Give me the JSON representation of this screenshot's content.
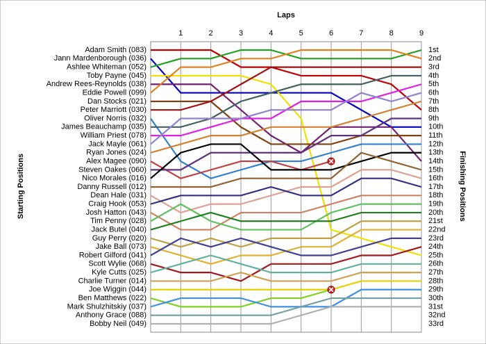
{
  "chart_data": {
    "type": "lap",
    "x_label": "Laps",
    "y_label": "Starting Positions",
    "y2_label": "Finishing Positions",
    "x": [
      0,
      1,
      2,
      3,
      4,
      5,
      6,
      7,
      8,
      9
    ],
    "xlim": [
      0,
      9
    ],
    "xticks": [
      1,
      2,
      3,
      4,
      5,
      6,
      7,
      8,
      9
    ],
    "ylim": [
      1,
      33
    ],
    "grid": true,
    "finishing_labels": [
      "1st",
      "2nd",
      "3rd",
      "4th",
      "5th",
      "6th",
      "7th",
      "8th",
      "9th",
      "10th",
      "11th",
      "12th",
      "13th",
      "14th",
      "15th",
      "16th",
      "17th",
      "18th",
      "19th",
      "20th",
      "21st",
      "22nd",
      "23rd",
      "24th",
      "25th",
      "26th",
      "27th",
      "28th",
      "29th",
      "30th",
      "31st",
      "32nd",
      "33rd"
    ],
    "series": [
      {
        "name": "Adam Smith (083)",
        "color": "#c00000",
        "values": [
          1,
          1,
          1,
          3,
          3,
          4,
          4,
          4,
          5,
          8
        ]
      },
      {
        "name": "Jann Mardenborough (036)",
        "color": "#0000c0",
        "values": [
          2,
          6,
          6,
          6,
          6,
          6,
          6,
          8,
          10,
          10
        ]
      },
      {
        "name": "Ashlee Whiteman (052)",
        "color": "#20a020",
        "values": [
          3,
          2,
          2,
          1,
          1,
          2,
          2,
          2,
          2,
          1
        ]
      },
      {
        "name": "Toby Payne (045)",
        "color": "#f0e000",
        "values": [
          4,
          4,
          4,
          4,
          5,
          9,
          22,
          23,
          24,
          25
        ]
      },
      {
        "name": "Andrew Rees-Reynolds (038)",
        "color": "#702070",
        "values": [
          5,
          5,
          5,
          8,
          11,
          13,
          10,
          10,
          10,
          14
        ]
      },
      {
        "name": "Eddie Powell (099)",
        "color": "#e08020",
        "values": [
          6,
          3,
          3,
          2,
          2,
          1,
          1,
          1,
          1,
          2
        ]
      },
      {
        "name": "Dan Stocks (021)",
        "color": "#804010",
        "values": [
          7,
          7,
          7,
          10,
          12,
          12,
          12,
          11,
          11,
          11
        ]
      },
      {
        "name": "Peter Marriott (030)",
        "color": "#a01010",
        "values": [
          8,
          8,
          7,
          5,
          3,
          3,
          3,
          3,
          3,
          3
        ]
      },
      {
        "name": "Oliver Norris (032)",
        "color": "#3080d0",
        "values": [
          9,
          14,
          16,
          15,
          14,
          14,
          13,
          12,
          12,
          12
        ]
      },
      {
        "name": "James Beauchamp (035)",
        "color": "#406060",
        "values": [
          10,
          10,
          9,
          7,
          6,
          5,
          5,
          5,
          4,
          4
        ]
      },
      {
        "name": "William Priest (078)",
        "color": "#e020e0",
        "values": [
          11,
          11,
          10,
          9,
          9,
          7,
          7,
          7,
          6,
          5
        ]
      },
      {
        "name": "Jack Mayle (061)",
        "color": "#9080d0",
        "values": [
          12,
          9,
          9,
          9,
          8,
          8,
          8,
          6,
          7,
          6
        ]
      },
      {
        "name": "Ryan Jones (024)",
        "color": "#d08030",
        "values": [
          13,
          12,
          11,
          11,
          10,
          10,
          10,
          9,
          8,
          7
        ]
      },
      {
        "name": "Alex Magee (090)",
        "color": "#c04040",
        "values": [
          14,
          16,
          15,
          14,
          14,
          15,
          14,
          null,
          null,
          null
        ]
      },
      {
        "name": "Steven Oakes (060)",
        "color": "#603080",
        "values": [
          15,
          15,
          13,
          13,
          13,
          13,
          11,
          11,
          9,
          9
        ]
      },
      {
        "name": "Nico Morales (016)",
        "color": "#000000",
        "values": [
          16,
          13,
          12,
          12,
          15,
          15,
          15,
          14,
          13,
          13
        ]
      },
      {
        "name": "Danny Russell (012)",
        "color": "#906030",
        "values": [
          17,
          17,
          17,
          16,
          16,
          16,
          16,
          13,
          14,
          15
        ]
      },
      {
        "name": "Dean Hale (031)",
        "color": "#e0a090",
        "values": [
          18,
          20,
          19,
          19,
          18,
          17,
          17,
          15,
          15,
          16
        ]
      },
      {
        "name": "Craig Hook (053)",
        "color": "#303080",
        "values": [
          19,
          18,
          18,
          18,
          17,
          18,
          18,
          16,
          16,
          17
        ]
      },
      {
        "name": "Josh Hatton (043)",
        "color": "#d08060",
        "values": [
          20,
          22,
          22,
          20,
          20,
          20,
          19,
          18,
          18,
          18
        ]
      },
      {
        "name": "Tim Penny (028)",
        "color": "#60c060",
        "values": [
          21,
          19,
          21,
          22,
          22,
          22,
          20,
          19,
          19,
          19
        ]
      },
      {
        "name": "Jack Butel (040)",
        "color": "#208020",
        "values": [
          22,
          21,
          20,
          21,
          21,
          21,
          21,
          20,
          20,
          20
        ]
      },
      {
        "name": "Guy Perry (020)",
        "color": "#c0a040",
        "values": [
          23,
          24,
          23,
          24,
          23,
          23,
          23,
          21,
          21,
          21
        ]
      },
      {
        "name": "Jake Ball (073)",
        "color": "#e0b030",
        "values": [
          24,
          25,
          26,
          25,
          25,
          24,
          24,
          22,
          22,
          22
        ]
      },
      {
        "name": "Robert Gilford (041)",
        "color": "#404090",
        "values": [
          25,
          23,
          24,
          23,
          24,
          25,
          25,
          24,
          23,
          23
        ]
      },
      {
        "name": "Scott Wylie (068)",
        "color": "#a01818",
        "values": [
          26,
          27,
          27,
          28,
          26,
          26,
          26,
          25,
          25,
          24
        ]
      },
      {
        "name": "Kyle Cutts (025)",
        "color": "#60b0a0",
        "values": [
          27,
          26,
          25,
          26,
          27,
          27,
          27,
          26,
          26,
          26
        ]
      },
      {
        "name": "Charlie Turner (014)",
        "color": "#d0a050",
        "values": [
          28,
          28,
          28,
          27,
          28,
          28,
          28,
          27,
          27,
          27
        ]
      },
      {
        "name": "Joe Wiggin (044)",
        "color": "#e8d000",
        "values": [
          29,
          29,
          29,
          29,
          29,
          29,
          29,
          28,
          28,
          28
        ]
      },
      {
        "name": "Ben Matthews (022)",
        "color": "#80d020",
        "values": [
          30,
          31,
          31,
          31,
          30,
          30,
          29,
          null,
          null,
          null
        ]
      },
      {
        "name": "Mark Shulzhitskiy (037)",
        "color": "#4090e0",
        "values": [
          31,
          30,
          30,
          30,
          31,
          31,
          31,
          29,
          29,
          29
        ]
      },
      {
        "name": "Anthony Grace (088)",
        "color": "#70a0a0",
        "values": [
          32,
          32,
          32,
          32,
          32,
          31,
          30,
          30,
          30,
          30
        ]
      },
      {
        "name": "Bobby Neil (049)",
        "color": "#b0b0b0",
        "values": [
          33,
          33,
          33,
          33,
          33,
          32,
          31,
          31,
          31,
          31
        ]
      }
    ]
  }
}
